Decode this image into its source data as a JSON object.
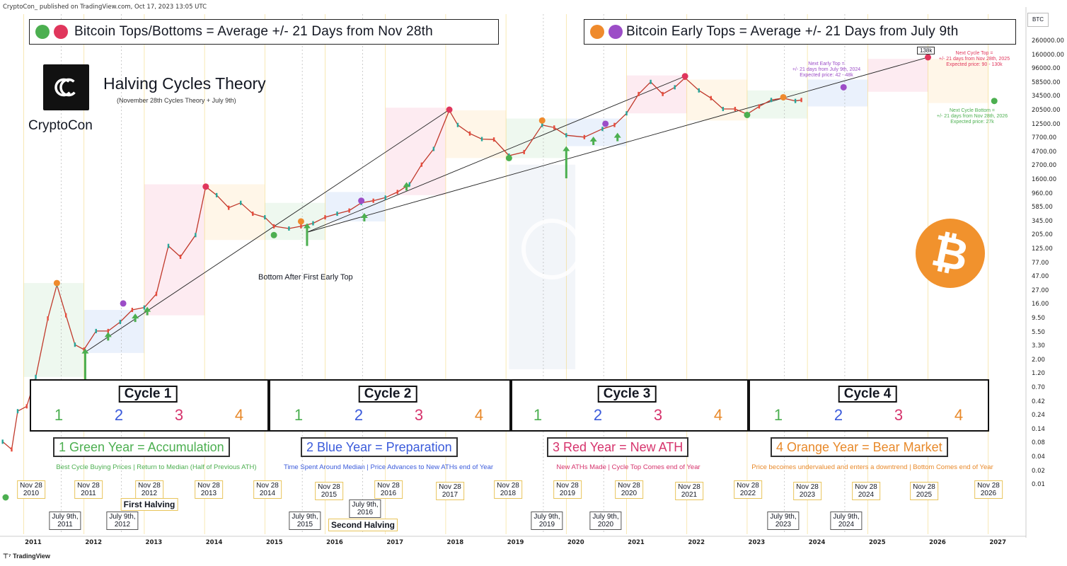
{
  "header": {
    "published": "CryptoCon_ published on TradingView.com, Oct 17, 2023 13:05 UTC"
  },
  "legend": {
    "left": {
      "text": "Bitcoin Tops/Bottoms = Average +/- 21 Days from Nov 28th",
      "colors": [
        "#4caf50",
        "#e0365c"
      ]
    },
    "right": {
      "text": "Bitcoin  Early Tops = Average +/- 21 Days from July 9th",
      "colors": [
        "#ef8a2c",
        "#9c4dc7"
      ]
    }
  },
  "branding": {
    "title": "Halving Cycles Theory",
    "subtitle": "(November 28th Cycles Theory + July 9th)",
    "author": "CryptoCon",
    "logo_icon": "cryptocon-logo-icon",
    "btc_icon": "bitcoin-logo-icon",
    "footer": "TradingView"
  },
  "axis": {
    "currency": "BTC",
    "price_ticks": [
      "260000.00",
      "160000.00",
      "96000.00",
      "58500.00",
      "34500.00",
      "20500.00",
      "12500.00",
      "7700.00",
      "4700.00",
      "2700.00",
      "1600.00",
      "960.00",
      "585.00",
      "345.00",
      "205.00",
      "125.00",
      "77.00",
      "47.00",
      "27.00",
      "16.00",
      "9.50",
      "5.50",
      "3.30",
      "2.00",
      "1.20",
      "0.70",
      "0.42",
      "0.24",
      "0.14",
      "0.08",
      "0.04",
      "0.02",
      "0.01"
    ],
    "year_ticks": [
      "2011",
      "2012",
      "2013",
      "2014",
      "2015",
      "2016",
      "2017",
      "2018",
      "2019",
      "2020",
      "2021",
      "2022",
      "2023",
      "2024",
      "2025",
      "2026",
      "2027"
    ]
  },
  "cycles": [
    {
      "title": "Cycle 1",
      "nums": [
        "1",
        "2",
        "3",
        "4"
      ]
    },
    {
      "title": "Cycle 2",
      "nums": [
        "1",
        "2",
        "3",
        "4"
      ]
    },
    {
      "title": "Cycle 3",
      "nums": [
        "1",
        "2",
        "3",
        "4"
      ]
    },
    {
      "title": "Cycle 4",
      "nums": [
        "1",
        "2",
        "3",
        "4"
      ]
    }
  ],
  "year_types": [
    {
      "label": "1 Green Year = Accumulation",
      "desc": "Best Cycle Buying Prices | Return to Median (Half of Previous ATH)",
      "color": "#4caf50"
    },
    {
      "label": "2 Blue Year = Preparation",
      "desc": "Time Spent Around Median | Price Advances to New ATHs end of Year",
      "color": "#3b5bdb"
    },
    {
      "label": "3 Red Year = New ATH",
      "desc": "New ATHs Made | Cycle Top Comes end of Year",
      "color": "#d6336c"
    },
    {
      "label": "4 Orange Year = Bear Market",
      "desc": "Price becomes undervalued and enters a downtrend | Bottom Comes end of Year",
      "color": "#e8892a"
    }
  ],
  "nov_dates": [
    "Nov 28\n2010",
    "Nov 28\n2011",
    "Nov 28\n2012",
    "Nov 28\n2013",
    "Nov 28\n2014",
    "Nov 28\n2015",
    "Nov 28\n2016",
    "Nov 28\n2017",
    "Nov 28\n2018",
    "Nov 28\n2019",
    "Nov 28\n2020",
    "Nov 28\n2021",
    "Nov 28\n2022",
    "Nov 28\n2023",
    "Nov 28\n2024",
    "Nov 28\n2025",
    "Nov 28\n2026"
  ],
  "jul_dates": [
    "July 9th,\n2011",
    "July 9th,\n2012",
    "July 9th,\n2015",
    "July 9th,\n2016",
    "July 9th,\n2019",
    "July 9th,\n2020",
    "July 9th,\n2023",
    "July 9th,\n2024"
  ],
  "halvings": {
    "first": "First Halving",
    "second": "Second Halving"
  },
  "annotations": {
    "bottom_after": "Bottom After First Early Top",
    "next_early_top": "Next Early Top =\n+/- 21 days from July 9th, 2024\nExpected price: 42 - 48k",
    "next_cycle_top": "Next Cycle Top =\n+/- 21 days from Nov 28th, 2025\nExpected price: 90 - 130k",
    "next_cycle_bottom": "Next Cycle Bottom =\n+/- 21 days from Nov 28th, 2026\nExpected price: 27k",
    "top_tag": "138k"
  },
  "chart_data": {
    "type": "line",
    "title": "Halving Cycles Theory",
    "scale": "log",
    "ylim": [
      0.01,
      260000
    ],
    "xlim": [
      2010.8,
      2027.2
    ],
    "series": [
      {
        "x": [
          2010.55,
          2010.7,
          2010.8,
          2010.95,
          2011.1,
          2011.3,
          2011.45,
          2011.6,
          2011.75,
          2011.9,
          2012.1,
          2012.3,
          2012.5,
          2012.7,
          2012.9,
          2013.1,
          2013.3,
          2013.5,
          2013.75,
          2013.92,
          2014.1,
          2014.3,
          2014.5,
          2014.7,
          2014.9,
          2015.05,
          2015.3,
          2015.5,
          2015.7,
          2015.9,
          2016.1,
          2016.3,
          2016.5,
          2016.7,
          2016.9,
          2017.1,
          2017.3,
          2017.5,
          2017.7,
          2017.96,
          2018.1,
          2018.3,
          2018.5,
          2018.7,
          2018.95,
          2019.2,
          2019.5,
          2019.7,
          2019.9,
          2020.2,
          2020.5,
          2020.7,
          2020.9,
          2021.1,
          2021.3,
          2021.5,
          2021.7,
          2021.87,
          2022.1,
          2022.3,
          2022.5,
          2022.7,
          2022.9,
          2023.1,
          2023.3,
          2023.5,
          2023.7,
          2023.8
        ],
        "values": [
          0.08,
          0.06,
          0.25,
          0.3,
          0.9,
          8,
          28,
          9,
          3,
          2.5,
          5,
          5,
          7,
          11,
          12,
          20,
          120,
          80,
          180,
          1100,
          800,
          500,
          600,
          400,
          350,
          250,
          230,
          250,
          280,
          350,
          400,
          450,
          600,
          650,
          730,
          900,
          1200,
          2500,
          4500,
          19000,
          11000,
          8000,
          6500,
          6400,
          3500,
          4000,
          11000,
          10000,
          7500,
          7000,
          9500,
          11000,
          17000,
          35000,
          55000,
          35000,
          45000,
          64000,
          40000,
          30000,
          20000,
          20000,
          16500,
          22000,
          28000,
          30000,
          27000,
          28000
        ]
      }
    ],
    "markers": [
      {
        "kind": "green-bottom",
        "x": [
          2010.6,
          2015.05,
          2018.95,
          2022.9,
          2027.0
        ],
        "y": [
          0.01,
          180,
          3200,
          16000,
          27000
        ]
      },
      {
        "kind": "red-top",
        "x": [
          2013.92,
          2017.96,
          2021.87,
          2025.9
        ],
        "y": [
          1100,
          19500,
          68000,
          138000
        ]
      },
      {
        "kind": "orange-early-top",
        "x": [
          2011.45,
          2015.5,
          2019.5,
          2023.5
        ],
        "y": [
          30,
          300,
          13000,
          31000
        ]
      },
      {
        "kind": "purple-early-top",
        "x": [
          2012.55,
          2016.5,
          2020.55,
          2024.5
        ],
        "y": [
          14,
          650,
          11500,
          45000
        ]
      }
    ]
  }
}
